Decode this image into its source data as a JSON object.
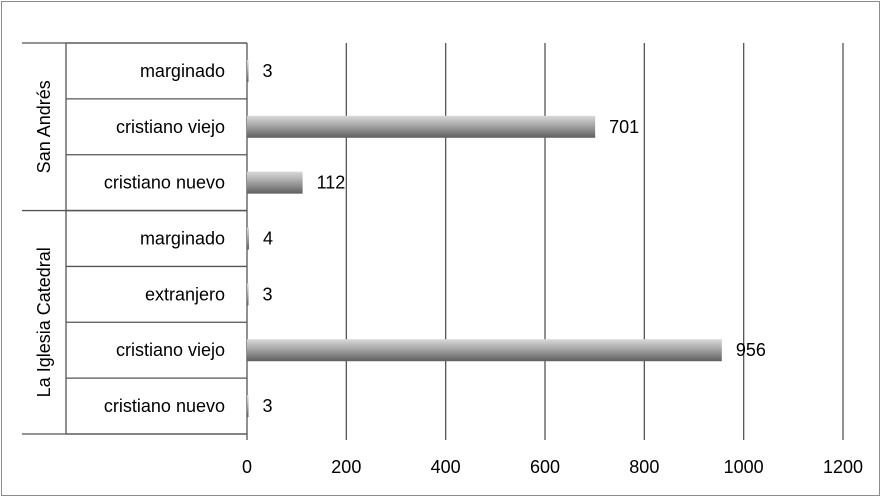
{
  "chart_data": {
    "type": "bar",
    "orientation": "horizontal",
    "groups": [
      {
        "name": "San Andrés",
        "categories": [
          "marginado",
          "cristiano viejo",
          "cristiano nuevo"
        ],
        "values": [
          3,
          701,
          112
        ]
      },
      {
        "name": "La Iglesia Catedral",
        "categories": [
          "marginado",
          "extranjero",
          "cristiano viejo",
          "cristiano nuevo"
        ],
        "values": [
          4,
          3,
          956,
          3
        ]
      }
    ],
    "xlim": [
      0,
      1200
    ],
    "xticks": [
      0,
      200,
      400,
      600,
      800,
      1000,
      1200
    ],
    "title": "",
    "xlabel": "",
    "ylabel": "",
    "grid": "vertical",
    "legend": "none",
    "data_labels": true,
    "colors": {
      "bar_light": "#d9d9d9",
      "bar_mid": "#a6a6a6",
      "bar_dark": "#5f5f5f",
      "grid": "#555555",
      "border": "#8c8c8c"
    }
  }
}
